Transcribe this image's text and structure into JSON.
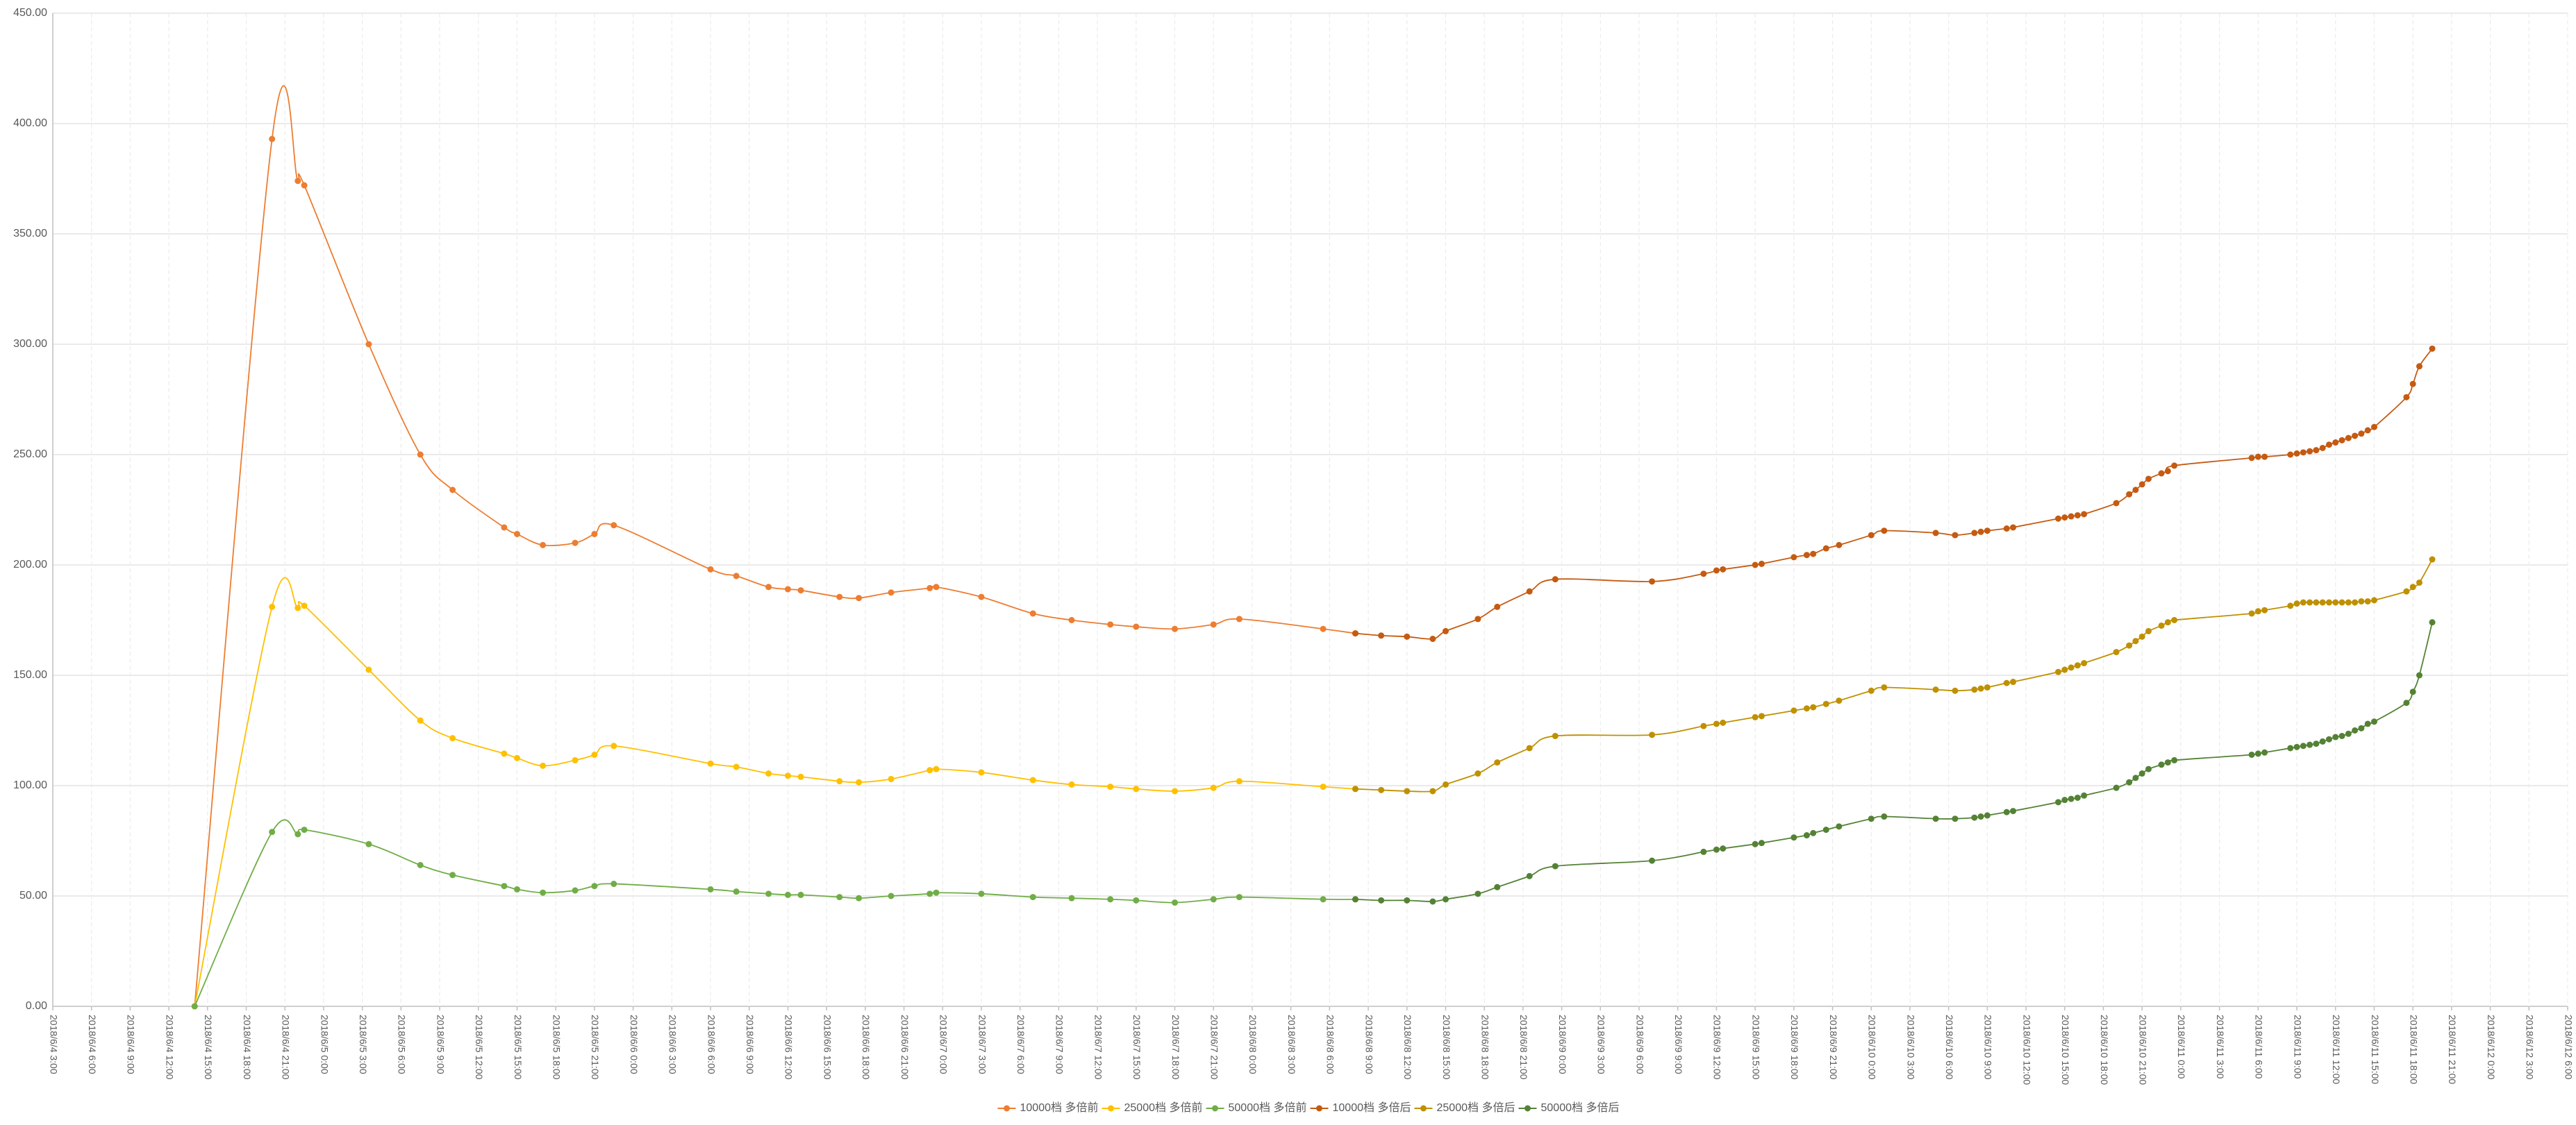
{
  "chart_data": {
    "type": "line",
    "xlim": [
      "2018/6/4 3:00",
      "2018/6/12 6:00"
    ],
    "xticks": [
      "2018/6/4 3:00",
      "2018/6/4 6:00",
      "2018/6/4 9:00",
      "2018/6/4 12:00",
      "2018/6/4 15:00",
      "2018/6/4 18:00",
      "2018/6/4 21:00",
      "2018/6/5 0:00",
      "2018/6/5 3:00",
      "2018/6/5 6:00",
      "2018/6/5 9:00",
      "2018/6/5 12:00",
      "2018/6/5 15:00",
      "2018/6/5 18:00",
      "2018/6/5 21:00",
      "2018/6/6 0:00",
      "2018/6/6 3:00",
      "2018/6/6 6:00",
      "2018/6/6 9:00",
      "2018/6/6 12:00",
      "2018/6/6 15:00",
      "2018/6/6 18:00",
      "2018/6/6 21:00",
      "2018/6/7 0:00",
      "2018/6/7 3:00",
      "2018/6/7 6:00",
      "2018/6/7 9:00",
      "2018/6/7 12:00",
      "2018/6/7 15:00",
      "2018/6/7 18:00",
      "2018/6/7 21:00",
      "2018/6/8 0:00",
      "2018/6/8 3:00",
      "2018/6/8 6:00",
      "2018/6/8 9:00",
      "2018/6/8 12:00",
      "2018/6/8 15:00",
      "2018/6/8 18:00",
      "2018/6/8 21:00",
      "2018/6/9 0:00",
      "2018/6/9 3:00",
      "2018/6/9 6:00",
      "2018/6/9 9:00",
      "2018/6/9 12:00",
      "2018/6/9 15:00",
      "2018/6/9 18:00",
      "2018/6/9 21:00",
      "2018/6/10 0:00",
      "2018/6/10 3:00",
      "2018/6/10 6:00",
      "2018/6/10 9:00",
      "2018/6/10 12:00",
      "2018/6/10 15:00",
      "2018/6/10 18:00",
      "2018/6/10 21:00",
      "2018/6/11 0:00",
      "2018/6/11 3:00",
      "2018/6/11 6:00",
      "2018/6/11 9:00",
      "2018/6/11 12:00",
      "2018/6/11 15:00",
      "2018/6/11 18:00",
      "2018/6/11 21:00",
      "2018/6/12 0:00",
      "2018/6/12 3:00",
      "2018/6/12 6:00"
    ],
    "ylim": [
      0,
      450
    ],
    "yticks": [
      {
        "value": 0,
        "label": "0.00"
      },
      {
        "value": 50,
        "label": "50.00"
      },
      {
        "value": 100,
        "label": "100.00"
      },
      {
        "value": 150,
        "label": "150.00"
      },
      {
        "value": 200,
        "label": "200.00"
      },
      {
        "value": 250,
        "label": "250.00"
      },
      {
        "value": 300,
        "label": "300.00"
      },
      {
        "value": 350,
        "label": "350.00"
      },
      {
        "value": 400,
        "label": "400.00"
      },
      {
        "value": 450,
        "label": "450.00"
      }
    ],
    "grid": true,
    "legend": "bottom",
    "series": [
      {
        "name": "10000档 多倍前",
        "color": "#ed7d31",
        "x": [
          "2018/6/4 14:00",
          "2018/6/4 20:00",
          "2018/6/4 22:00",
          "2018/6/4 22:30",
          "2018/6/5 3:30",
          "2018/6/5 7:30",
          "2018/6/5 10:00",
          "2018/6/5 14:00",
          "2018/6/5 15:00",
          "2018/6/5 17:00",
          "2018/6/5 19:30",
          "2018/6/5 21:00",
          "2018/6/5 22:30",
          "2018/6/6 6:00",
          "2018/6/6 8:00",
          "2018/6/6 10:30",
          "2018/6/6 12:00",
          "2018/6/6 13:00",
          "2018/6/6 16:00",
          "2018/6/6 17:30",
          "2018/6/6 20:00",
          "2018/6/6 23:00",
          "2018/6/6 23:30",
          "2018/6/7 3:00",
          "2018/6/7 7:00",
          "2018/6/7 10:00",
          "2018/6/7 13:00",
          "2018/6/7 15:00",
          "2018/6/7 18:00",
          "2018/6/7 21:00",
          "2018/6/7 23:00",
          "2018/6/8 5:30",
          "2018/6/8 8:00"
        ],
        "values": [
          0,
          393,
          374,
          372,
          300,
          250,
          234,
          217,
          214,
          209,
          210,
          214,
          218,
          198,
          195,
          190,
          189,
          188.5,
          185.5,
          185,
          187.5,
          189.5,
          190,
          185.5,
          178,
          175,
          173,
          172,
          171,
          173,
          175.5,
          171,
          169
        ]
      },
      {
        "name": "25000档 多倍前",
        "color": "#ffc000",
        "x": [
          "2018/6/4 14:00",
          "2018/6/4 20:00",
          "2018/6/4 22:00",
          "2018/6/4 22:30",
          "2018/6/5 3:30",
          "2018/6/5 7:30",
          "2018/6/5 10:00",
          "2018/6/5 14:00",
          "2018/6/5 15:00",
          "2018/6/5 17:00",
          "2018/6/5 19:30",
          "2018/6/5 21:00",
          "2018/6/5 22:30",
          "2018/6/6 6:00",
          "2018/6/6 8:00",
          "2018/6/6 10:30",
          "2018/6/6 12:00",
          "2018/6/6 13:00",
          "2018/6/6 16:00",
          "2018/6/6 17:30",
          "2018/6/6 20:00",
          "2018/6/6 23:00",
          "2018/6/6 23:30",
          "2018/6/7 3:00",
          "2018/6/7 7:00",
          "2018/6/7 10:00",
          "2018/6/7 13:00",
          "2018/6/7 15:00",
          "2018/6/7 18:00",
          "2018/6/7 21:00",
          "2018/6/7 23:00",
          "2018/6/8 5:30",
          "2018/6/8 8:00"
        ],
        "values": [
          0,
          181,
          180.5,
          181.5,
          152.5,
          129.5,
          121.5,
          114.5,
          112.5,
          109,
          111.5,
          114,
          118,
          110,
          108.5,
          105.5,
          104.5,
          104,
          102,
          101.5,
          103,
          107,
          107.5,
          106,
          102.5,
          100.5,
          99.5,
          98.5,
          97.5,
          99,
          102,
          99.5,
          98.5
        ]
      },
      {
        "name": "50000档 多倍前",
        "color": "#70ad47",
        "x": [
          "2018/6/4 14:00",
          "2018/6/4 20:00",
          "2018/6/4 22:00",
          "2018/6/4 22:30",
          "2018/6/5 3:30",
          "2018/6/5 7:30",
          "2018/6/5 10:00",
          "2018/6/5 14:00",
          "2018/6/5 15:00",
          "2018/6/5 17:00",
          "2018/6/5 19:30",
          "2018/6/5 21:00",
          "2018/6/5 22:30",
          "2018/6/6 6:00",
          "2018/6/6 8:00",
          "2018/6/6 10:30",
          "2018/6/6 12:00",
          "2018/6/6 13:00",
          "2018/6/6 16:00",
          "2018/6/6 17:30",
          "2018/6/6 20:00",
          "2018/6/6 23:00",
          "2018/6/6 23:30",
          "2018/6/7 3:00",
          "2018/6/7 7:00",
          "2018/6/7 10:00",
          "2018/6/7 13:00",
          "2018/6/7 15:00",
          "2018/6/7 18:00",
          "2018/6/7 21:00",
          "2018/6/7 23:00",
          "2018/6/8 5:30",
          "2018/6/8 8:00"
        ],
        "values": [
          0,
          79,
          78,
          80,
          73.5,
          64,
          59.5,
          54.5,
          53,
          51.5,
          52.5,
          54.5,
          55.5,
          53,
          52,
          51,
          50.5,
          50.5,
          49.5,
          49,
          50,
          51,
          51.5,
          51,
          49.5,
          49,
          48.5,
          48,
          47,
          48.5,
          49.5,
          48.5,
          48.5
        ]
      },
      {
        "name": "10000档 多倍后",
        "color": "#c55a11",
        "x": [
          "2018/6/8 8:00",
          "2018/6/8 10:00",
          "2018/6/8 12:00",
          "2018/6/8 14:00",
          "2018/6/8 15:00",
          "2018/6/8 17:30",
          "2018/6/8 19:00",
          "2018/6/8 21:30",
          "2018/6/8 23:30",
          "2018/6/9 7:00",
          "2018/6/9 11:00",
          "2018/6/9 12:00",
          "2018/6/9 12:30",
          "2018/6/9 15:00",
          "2018/6/9 15:30",
          "2018/6/9 18:00",
          "2018/6/9 19:00",
          "2018/6/9 19:30",
          "2018/6/9 20:30",
          "2018/6/9 21:30",
          "2018/6/10 0:00",
          "2018/6/10 1:00",
          "2018/6/10 5:00",
          "2018/6/10 6:30",
          "2018/6/10 8:00",
          "2018/6/10 8:30",
          "2018/6/10 9:00",
          "2018/6/10 10:30",
          "2018/6/10 11:00",
          "2018/6/10 14:30",
          "2018/6/10 15:00",
          "2018/6/10 15:30",
          "2018/6/10 16:00",
          "2018/6/10 16:30",
          "2018/6/10 19:00",
          "2018/6/10 20:00",
          "2018/6/10 20:30",
          "2018/6/10 21:00",
          "2018/6/10 21:30",
          "2018/6/10 22:30",
          "2018/6/10 23:00",
          "2018/6/10 23:30",
          "2018/6/11 5:30",
          "2018/6/11 6:00",
          "2018/6/11 6:30",
          "2018/6/11 8:30",
          "2018/6/11 9:00",
          "2018/6/11 9:30",
          "2018/6/11 10:00",
          "2018/6/11 10:30",
          "2018/6/11 11:00",
          "2018/6/11 11:30",
          "2018/6/11 12:00",
          "2018/6/11 12:30",
          "2018/6/11 13:00",
          "2018/6/11 13:30",
          "2018/6/11 14:00",
          "2018/6/11 14:30",
          "2018/6/11 15:00",
          "2018/6/11 17:30",
          "2018/6/11 18:00",
          "2018/6/11 18:30",
          "2018/6/11 19:30"
        ],
        "values": [
          169,
          168,
          167.5,
          166.5,
          170,
          175.5,
          181,
          188,
          193.5,
          192.5,
          196,
          197.5,
          198,
          200,
          200.5,
          203.5,
          204.5,
          205,
          207.5,
          209,
          213.5,
          215.5,
          214.5,
          213.5,
          214.5,
          215,
          215.5,
          216.5,
          217,
          221,
          221.5,
          222,
          222.5,
          223,
          228,
          232,
          234,
          236.5,
          239,
          241.5,
          242.5,
          245,
          248.5,
          249,
          249,
          250,
          250.5,
          251,
          251.5,
          252,
          253,
          254.5,
          255.5,
          256.5,
          257.5,
          258.5,
          259.5,
          261,
          262.5,
          276,
          282,
          290,
          298
        ]
      },
      {
        "name": "25000档 多倍后",
        "color": "#bf9000",
        "x": [
          "2018/6/8 8:00",
          "2018/6/8 10:00",
          "2018/6/8 12:00",
          "2018/6/8 14:00",
          "2018/6/8 15:00",
          "2018/6/8 17:30",
          "2018/6/8 19:00",
          "2018/6/8 21:30",
          "2018/6/8 23:30",
          "2018/6/9 7:00",
          "2018/6/9 11:00",
          "2018/6/9 12:00",
          "2018/6/9 12:30",
          "2018/6/9 15:00",
          "2018/6/9 15:30",
          "2018/6/9 18:00",
          "2018/6/9 19:00",
          "2018/6/9 19:30",
          "2018/6/9 20:30",
          "2018/6/9 21:30",
          "2018/6/10 0:00",
          "2018/6/10 1:00",
          "2018/6/10 5:00",
          "2018/6/10 6:30",
          "2018/6/10 8:00",
          "2018/6/10 8:30",
          "2018/6/10 9:00",
          "2018/6/10 10:30",
          "2018/6/10 11:00",
          "2018/6/10 14:30",
          "2018/6/10 15:00",
          "2018/6/10 15:30",
          "2018/6/10 16:00",
          "2018/6/10 16:30",
          "2018/6/10 19:00",
          "2018/6/10 20:00",
          "2018/6/10 20:30",
          "2018/6/10 21:00",
          "2018/6/10 21:30",
          "2018/6/10 22:30",
          "2018/6/10 23:00",
          "2018/6/10 23:30",
          "2018/6/11 5:30",
          "2018/6/11 6:00",
          "2018/6/11 6:30",
          "2018/6/11 8:30",
          "2018/6/11 9:00",
          "2018/6/11 9:30",
          "2018/6/11 10:00",
          "2018/6/11 10:30",
          "2018/6/11 11:00",
          "2018/6/11 11:30",
          "2018/6/11 12:00",
          "2018/6/11 12:30",
          "2018/6/11 13:00",
          "2018/6/11 13:30",
          "2018/6/11 14:00",
          "2018/6/11 14:30",
          "2018/6/11 15:00",
          "2018/6/11 17:30",
          "2018/6/11 18:00",
          "2018/6/11 18:30",
          "2018/6/11 19:30"
        ],
        "values": [
          98.5,
          98,
          97.5,
          97.5,
          100.5,
          105.5,
          110.5,
          117,
          122.5,
          123,
          127,
          128,
          128.5,
          131,
          131.5,
          134,
          135,
          135.5,
          137,
          138.5,
          143,
          144.5,
          143.5,
          143,
          143.5,
          144,
          144.5,
          146.5,
          147,
          151.5,
          152.5,
          153.5,
          154.5,
          155.5,
          160.5,
          163.5,
          165.5,
          167.5,
          170,
          172.5,
          174,
          175,
          178,
          179,
          179.5,
          181.5,
          182.5,
          183,
          183,
          183,
          183,
          183,
          183,
          183,
          183,
          183,
          183.5,
          183.5,
          184,
          188,
          190,
          192,
          202.5
        ]
      },
      {
        "name": "50000档 多倍后",
        "color": "#548235",
        "x": [
          "2018/6/8 8:00",
          "2018/6/8 10:00",
          "2018/6/8 12:00",
          "2018/6/8 14:00",
          "2018/6/8 15:00",
          "2018/6/8 17:30",
          "2018/6/8 19:00",
          "2018/6/8 21:30",
          "2018/6/8 23:30",
          "2018/6/9 7:00",
          "2018/6/9 11:00",
          "2018/6/9 12:00",
          "2018/6/9 12:30",
          "2018/6/9 15:00",
          "2018/6/9 15:30",
          "2018/6/9 18:00",
          "2018/6/9 19:00",
          "2018/6/9 19:30",
          "2018/6/9 20:30",
          "2018/6/9 21:30",
          "2018/6/10 0:00",
          "2018/6/10 1:00",
          "2018/6/10 5:00",
          "2018/6/10 6:30",
          "2018/6/10 8:00",
          "2018/6/10 8:30",
          "2018/6/10 9:00",
          "2018/6/10 10:30",
          "2018/6/10 11:00",
          "2018/6/10 14:30",
          "2018/6/10 15:00",
          "2018/6/10 15:30",
          "2018/6/10 16:00",
          "2018/6/10 16:30",
          "2018/6/10 19:00",
          "2018/6/10 20:00",
          "2018/6/10 20:30",
          "2018/6/10 21:00",
          "2018/6/10 21:30",
          "2018/6/10 22:30",
          "2018/6/10 23:00",
          "2018/6/10 23:30",
          "2018/6/11 5:30",
          "2018/6/11 6:00",
          "2018/6/11 6:30",
          "2018/6/11 8:30",
          "2018/6/11 9:00",
          "2018/6/11 9:30",
          "2018/6/11 10:00",
          "2018/6/11 10:30",
          "2018/6/11 11:00",
          "2018/6/11 11:30",
          "2018/6/11 12:00",
          "2018/6/11 12:30",
          "2018/6/11 13:00",
          "2018/6/11 13:30",
          "2018/6/11 14:00",
          "2018/6/11 14:30",
          "2018/6/11 15:00",
          "2018/6/11 17:30",
          "2018/6/11 18:00",
          "2018/6/11 18:30",
          "2018/6/11 19:30"
        ],
        "values": [
          48.5,
          48,
          48,
          47.5,
          48.5,
          51,
          54,
          59,
          63.5,
          66,
          70,
          71,
          71.5,
          73.5,
          74,
          76.5,
          77.5,
          78.5,
          80,
          81.5,
          85,
          86,
          85,
          85,
          85.5,
          86,
          86.5,
          88,
          88.5,
          92.5,
          93.5,
          94,
          94.5,
          95.5,
          99,
          101.5,
          103.5,
          105.5,
          107.5,
          109.5,
          110.5,
          111.5,
          114,
          114.5,
          115,
          117,
          117.5,
          118,
          118.5,
          119,
          120,
          121,
          122,
          122.5,
          123.5,
          125,
          126,
          128,
          129,
          137.5,
          142.5,
          150,
          174
        ]
      }
    ]
  }
}
